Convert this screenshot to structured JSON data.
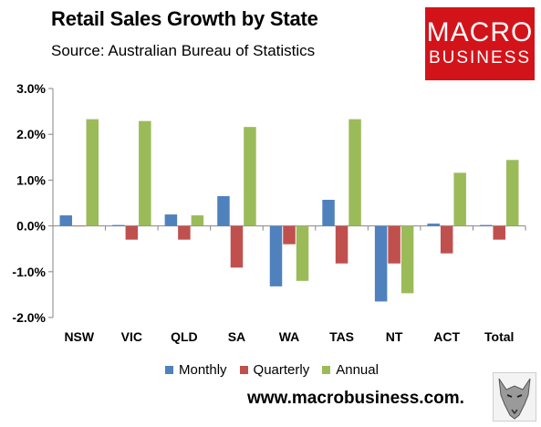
{
  "header": {
    "title": "Retail Sales Growth by State",
    "subtitle": "Source: Australian Bureau of Statistics"
  },
  "logo": {
    "line1": "MACRO",
    "line2": "BUSINESS",
    "color": "#d3131a"
  },
  "footer": {
    "website": "www.macrobusiness.com."
  },
  "chart_data": {
    "type": "bar",
    "categories": [
      "NSW",
      "VIC",
      "QLD",
      "SA",
      "WA",
      "TAS",
      "NT",
      "ACT",
      "Total"
    ],
    "series": [
      {
        "name": "Monthly",
        "color": "#4f81bd",
        "values": [
          0.23,
          0.02,
          0.25,
          0.65,
          -1.32,
          0.57,
          -1.65,
          0.05,
          0.02
        ]
      },
      {
        "name": "Quarterly",
        "color": "#c0504d",
        "values": [
          0.0,
          -0.3,
          -0.3,
          -0.91,
          -0.4,
          -0.82,
          -0.82,
          -0.6,
          -0.3
        ]
      },
      {
        "name": "Annual",
        "color": "#9bbb59",
        "values": [
          2.33,
          2.29,
          0.23,
          2.16,
          -1.2,
          2.33,
          -1.47,
          1.16,
          1.44
        ]
      }
    ],
    "ylim": [
      -2.0,
      3.0
    ],
    "yticks": [
      "-2.0%",
      "-1.0%",
      "0.0%",
      "1.0%",
      "2.0%",
      "3.0%"
    ],
    "ytick_values": [
      -2,
      -1,
      0,
      1,
      2,
      3
    ],
    "grid": false,
    "legend": "bottom"
  }
}
